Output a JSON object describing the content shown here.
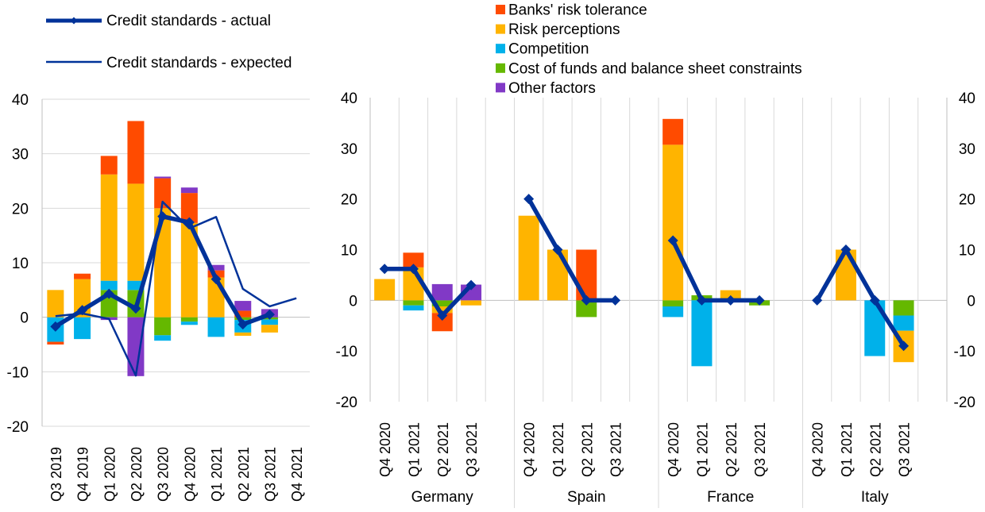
{
  "colors": {
    "banks_risk_tolerance": "#FF4B00",
    "risk_perceptions": "#FFB400",
    "competition": "#00B1EA",
    "cost_of_funds": "#65B800",
    "other_factors": "#8139C6",
    "actual_line": "#003299",
    "expected_line": "#003299",
    "gridline": "#D9D9D9",
    "axis": "#BFBFBF"
  },
  "legend": {
    "actual": "Credit standards - actual",
    "expected": "Credit standards - expected",
    "banks_risk_tolerance": "Banks' risk tolerance",
    "risk_perceptions": "Risk perceptions",
    "competition": "Competition",
    "cost_of_funds": "Cost of funds and balance sheet constraints",
    "other_factors": "Other factors"
  },
  "chart_data": [
    {
      "type": "bar",
      "stacked": true,
      "title": "",
      "ylim": [
        -20,
        40
      ],
      "yticks": [
        "40",
        "30",
        "20",
        "10",
        "0",
        "-10",
        "-20"
      ],
      "categories": [
        "Q3 2019",
        "Q4 2019",
        "Q1 2020",
        "Q2 2020",
        "Q3 2020",
        "Q4 2020",
        "Q1 2021",
        "Q2 2021",
        "Q3 2021",
        "Q4 2021"
      ],
      "series": [
        {
          "name": "Cost of funds and balance sheet constraints",
          "key": "cost_of_funds",
          "values": [
            0,
            0,
            5,
            5,
            -3.3,
            -0.8,
            0,
            -0.5,
            -0.4,
            null
          ]
        },
        {
          "name": "Competition",
          "key": "competition",
          "values": [
            -4.5,
            -4,
            1.7,
            1.7,
            -1,
            -0.6,
            -3.6,
            -2.3,
            -1,
            null
          ]
        },
        {
          "name": "Risk perceptions",
          "key": "risk_perceptions",
          "values": [
            5,
            7,
            19.5,
            17.8,
            20,
            17.3,
            7.3,
            -0.6,
            -1.4,
            null
          ]
        },
        {
          "name": "Banks' risk tolerance",
          "key": "banks_risk_tolerance",
          "values": [
            -0.5,
            1,
            3.4,
            11.5,
            5.5,
            5.5,
            1.3,
            1.2,
            0,
            null
          ]
        },
        {
          "name": "Other factors",
          "key": "other_factors",
          "values": [
            0,
            0,
            -0.5,
            -10.8,
            0.3,
            1,
            1,
            1.8,
            1.5,
            null
          ]
        }
      ],
      "lines": [
        {
          "name": "Credit standards - actual",
          "key": "actual",
          "values": [
            -1.7,
            1.3,
            4.3,
            1.6,
            18.5,
            17.4,
            7,
            -1.3,
            0.5,
            null
          ]
        },
        {
          "name": "Credit standards - expected",
          "key": "expected",
          "values": [
            0.2,
            0.7,
            -0.3,
            -10.7,
            21.2,
            16.3,
            18.4,
            5.2,
            2,
            3.5
          ]
        }
      ]
    },
    {
      "type": "bar",
      "stacked": true,
      "title": "",
      "ylim": [
        -20,
        40
      ],
      "yticks": [
        "40",
        "30",
        "20",
        "10",
        "0",
        "-10",
        "-20"
      ],
      "groups": [
        "Germany",
        "Spain",
        "France",
        "Italy"
      ],
      "categories": [
        "Q4 2020",
        "Q1 2021",
        "Q2 2021",
        "Q3 2021"
      ],
      "series": [
        {
          "name": "Cost of funds and balance sheet constraints",
          "key": "cost_of_funds",
          "values": [
            [
              0,
              -1,
              -1.2,
              0
            ],
            [
              0,
              0,
              -3.3,
              0
            ],
            [
              -1.2,
              1,
              0,
              -1
            ],
            [
              0,
              0,
              0,
              -3
            ]
          ]
        },
        {
          "name": "Competition",
          "key": "competition",
          "values": [
            [
              0,
              -1,
              0,
              0
            ],
            [
              0,
              0,
              0,
              0
            ],
            [
              -2.1,
              -13,
              0,
              0
            ],
            [
              0,
              0,
              -11,
              -3
            ]
          ]
        },
        {
          "name": "Risk perceptions",
          "key": "risk_perceptions",
          "values": [
            [
              4.2,
              6.5,
              -1.3,
              -1
            ],
            [
              16.7,
              10,
              0,
              0
            ],
            [
              30.7,
              0,
              2,
              0
            ],
            [
              0,
              10,
              0,
              -6.2
            ]
          ]
        },
        {
          "name": "Banks' risk tolerance",
          "key": "banks_risk_tolerance",
          "values": [
            [
              0,
              2.9,
              -3.6,
              0
            ],
            [
              0,
              0,
              10,
              0
            ],
            [
              5.1,
              0,
              0,
              0
            ],
            [
              0,
              0,
              0,
              0
            ]
          ]
        },
        {
          "name": "Other factors",
          "key": "other_factors",
          "values": [
            [
              0,
              0,
              3.2,
              3.1
            ],
            [
              0,
              0,
              0,
              0
            ],
            [
              0,
              0,
              0,
              0
            ],
            [
              0,
              0,
              0,
              0
            ]
          ]
        }
      ],
      "lines": [
        {
          "name": "Credit standards - actual",
          "key": "actual",
          "values": [
            [
              6.2,
              6.2,
              -3,
              3
            ],
            [
              20,
              10,
              0,
              0
            ],
            [
              11.8,
              0,
              0,
              0
            ],
            [
              0,
              10,
              0,
              -9
            ]
          ]
        }
      ]
    }
  ]
}
